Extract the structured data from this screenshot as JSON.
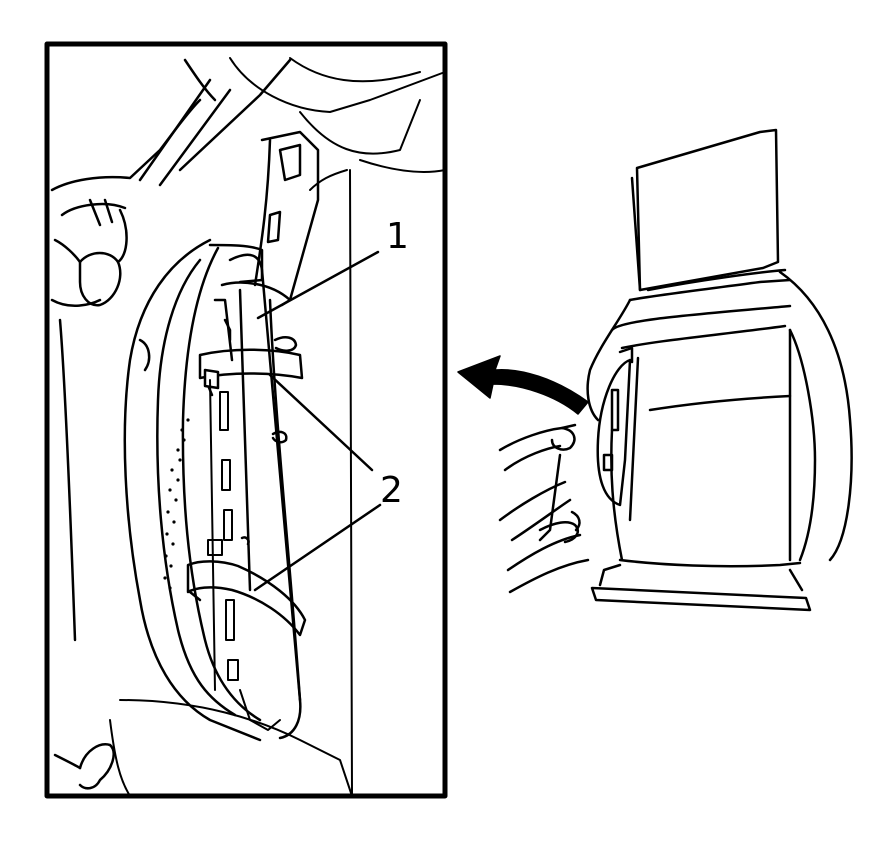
{
  "callouts": [
    {
      "id": "1",
      "text": "1"
    },
    {
      "id": "2",
      "text": "2"
    }
  ],
  "colors": {
    "line": "#000000",
    "paper": "#ffffff"
  },
  "icons": {
    "motion_arrow": "curved-arrow-left-icon"
  }
}
